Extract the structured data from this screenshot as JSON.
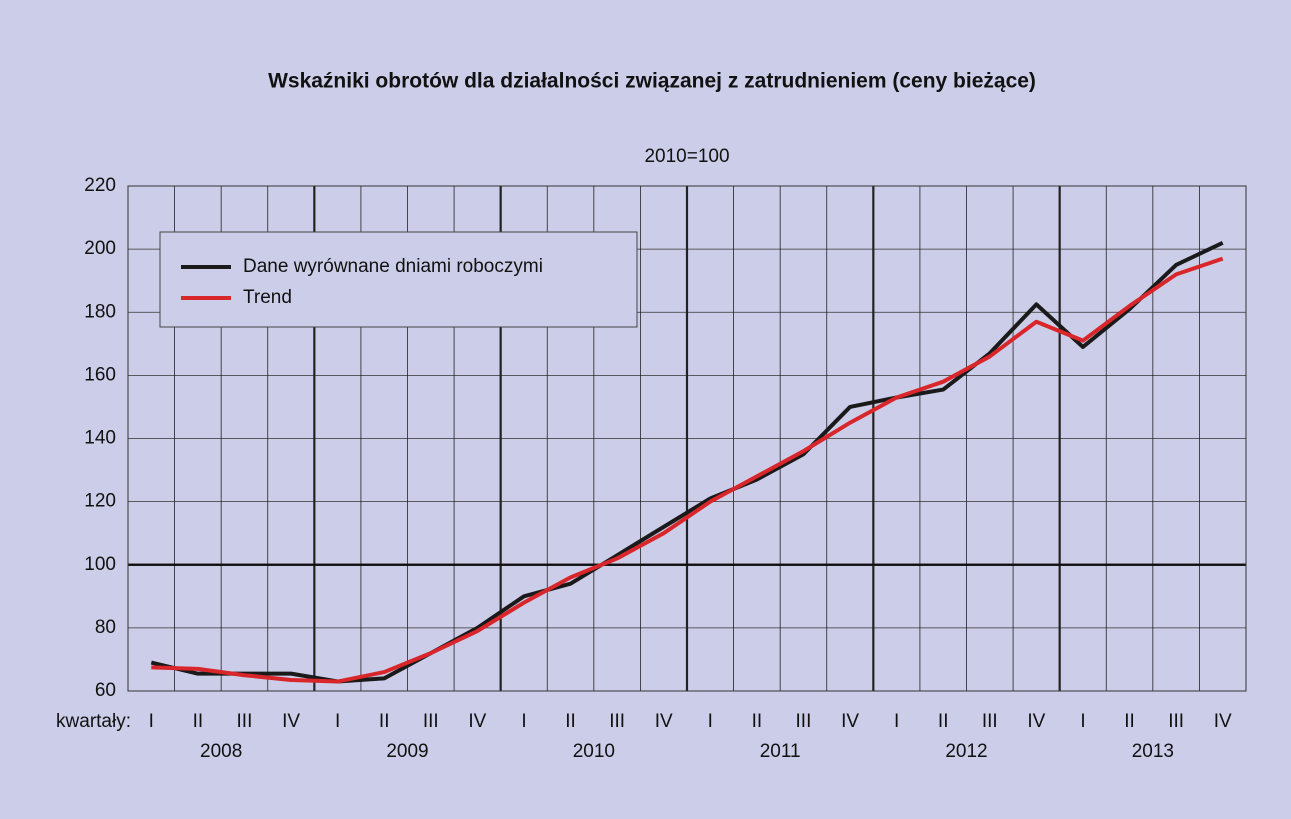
{
  "chart_data": {
    "type": "line",
    "title": "Wskaźniki obrotów dla działalności związanej z zatrudnieniem (ceny bieżące)",
    "subtitle": "2010=100",
    "x_axis_label": "kwartały:",
    "categories": [
      "I",
      "II",
      "III",
      "IV",
      "I",
      "II",
      "III",
      "IV",
      "I",
      "II",
      "III",
      "IV",
      "I",
      "II",
      "III",
      "IV",
      "I",
      "II",
      "III",
      "IV",
      "I",
      "II",
      "III",
      "IV"
    ],
    "year_labels": [
      "2008",
      "2009",
      "2010",
      "2011",
      "2012",
      "2013"
    ],
    "series": [
      {
        "name": "Dane wyrównane dniami roboczymi",
        "color": "#1a1a1a",
        "values": [
          69,
          65.5,
          65.5,
          65.5,
          63,
          64,
          72,
          80,
          90,
          94,
          103,
          112,
          121,
          127,
          135,
          150,
          153,
          155.5,
          167,
          182.5,
          169,
          181,
          195,
          202
        ]
      },
      {
        "name": "Trend",
        "color": "#d8262b",
        "values": [
          67.5,
          67,
          65,
          63.5,
          63,
          66,
          72,
          79,
          88,
          96,
          102,
          110,
          120,
          128,
          136,
          145,
          153,
          158,
          166,
          177,
          171,
          182,
          192,
          197
        ]
      }
    ],
    "ylim": [
      60,
      220
    ],
    "yticks": [
      60,
      80,
      100,
      120,
      140,
      160,
      180,
      200,
      220
    ],
    "highlight_y": 100,
    "grid": true
  }
}
